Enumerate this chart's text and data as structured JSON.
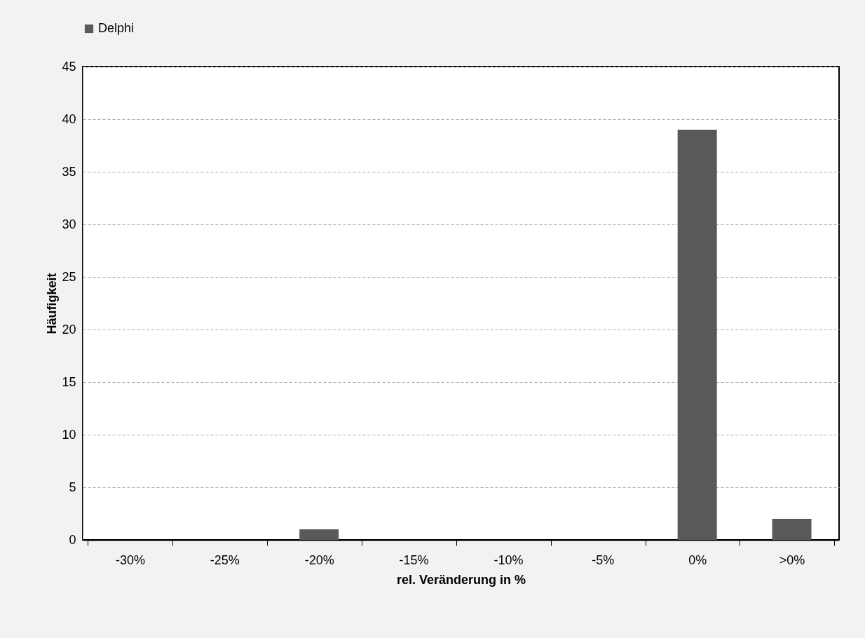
{
  "chart_data": {
    "type": "bar",
    "xlabel": "rel. Veränderung in %",
    "ylabel": "Häufigkeit",
    "categories": [
      "-30%",
      "-25%",
      "-20%",
      "-15%",
      "-10%",
      "-5%",
      "0%",
      ">0%"
    ],
    "series": [
      {
        "name": "Delphi",
        "color": "#595959",
        "values": [
          0,
          0,
          1,
          0,
          0,
          0,
          39,
          2
        ]
      }
    ],
    "ylim": [
      0,
      45
    ],
    "yticks": [
      0,
      5,
      10,
      15,
      20,
      25,
      30,
      35,
      40,
      45
    ],
    "grid": "y",
    "legend": "top"
  }
}
